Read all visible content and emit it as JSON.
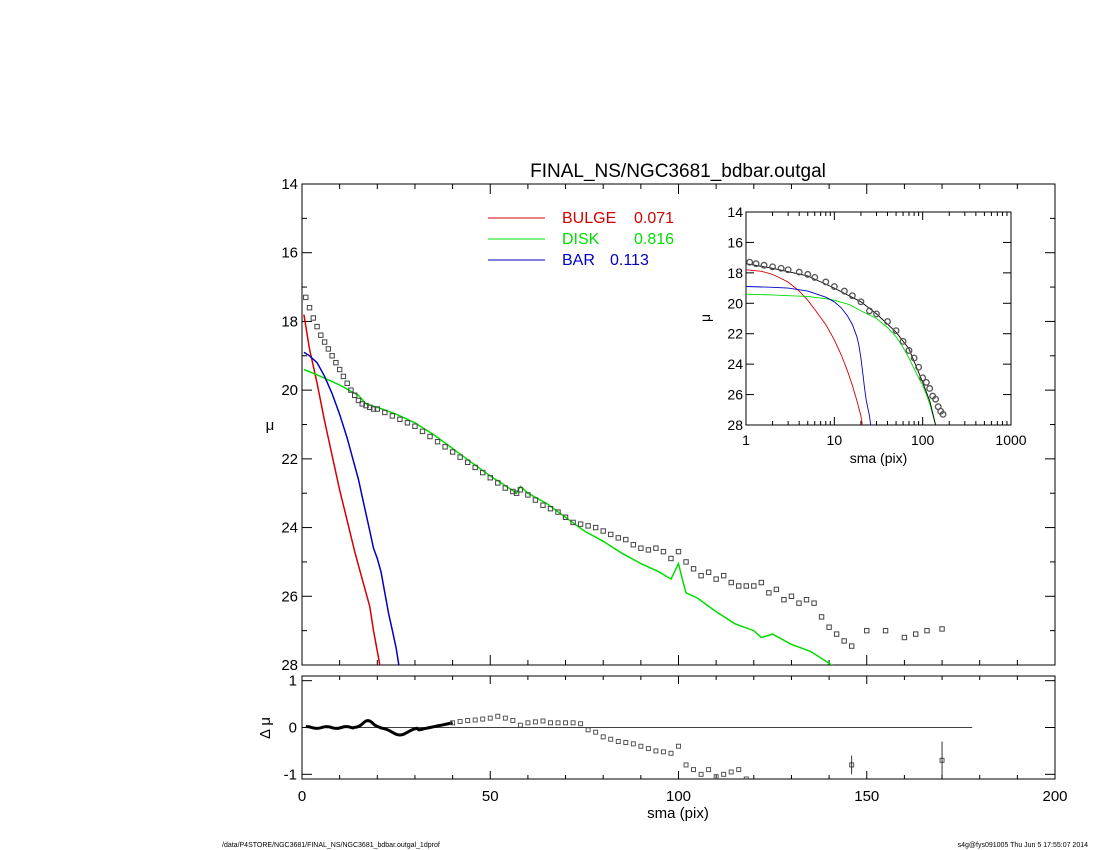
{
  "footer": {
    "left": "/data/P4STORE/NGC3681/FINAL_NS/NGC3681_bdbar.outgal_1dprof",
    "right": "s4g@fys091005  Thu Jun  5 17:55:07 2014"
  },
  "chart_data": [
    {
      "id": "main",
      "type": "line",
      "title": "FINAL_NS/NGC3681_bdbar.outgal",
      "xlabel": "",
      "ylabel": "μ",
      "xlim": [
        0,
        200
      ],
      "ylim": [
        28,
        14
      ],
      "xticks": [
        "0",
        "50",
        "100",
        "150",
        "200"
      ],
      "yticks": [
        "14",
        "16",
        "18",
        "20",
        "22",
        "24",
        "26",
        "28"
      ],
      "legend": {
        "position": "top-center",
        "entries": [
          {
            "name": "BULGE",
            "value": "0.071",
            "color": "#d40000"
          },
          {
            "name": "DISK",
            "value": "0.816",
            "color": "#00dd00"
          },
          {
            "name": "BAR",
            "value": "0.113",
            "color": "#0000c0"
          }
        ]
      },
      "data_points": {
        "marker": "square",
        "x": [
          1,
          2,
          3,
          4,
          5,
          6,
          7,
          8,
          9,
          10,
          11,
          12,
          13,
          14,
          15,
          16,
          17,
          18,
          19,
          20,
          22,
          24,
          26,
          28,
          30,
          32,
          34,
          36,
          38,
          40,
          42,
          44,
          46,
          48,
          50,
          52,
          54,
          56,
          57,
          58,
          60,
          62,
          64,
          66,
          68,
          70,
          72,
          74,
          76,
          78,
          80,
          82,
          84,
          86,
          88,
          90,
          92,
          94,
          96,
          98,
          100,
          102,
          104,
          106,
          108,
          110,
          112,
          114,
          116,
          118,
          120,
          122,
          124,
          126,
          128,
          130,
          132,
          134,
          136,
          138,
          140,
          142,
          144,
          146,
          150,
          155,
          160,
          163,
          166,
          170
        ],
        "y": [
          17.3,
          17.6,
          17.9,
          18.15,
          18.4,
          18.6,
          18.8,
          19.0,
          19.2,
          19.4,
          19.6,
          19.8,
          20.0,
          20.15,
          20.3,
          20.4,
          20.45,
          20.5,
          20.55,
          20.55,
          20.65,
          20.75,
          20.85,
          20.95,
          21.05,
          21.2,
          21.35,
          21.5,
          21.65,
          21.8,
          21.95,
          22.1,
          22.25,
          22.4,
          22.55,
          22.7,
          22.85,
          22.95,
          23.0,
          22.9,
          23.05,
          23.2,
          23.35,
          23.45,
          23.55,
          23.7,
          23.85,
          23.9,
          23.95,
          24.0,
          24.1,
          24.2,
          24.3,
          24.35,
          24.5,
          24.6,
          24.65,
          24.6,
          24.7,
          24.9,
          24.7,
          25.0,
          25.2,
          25.4,
          25.3,
          25.5,
          25.4,
          25.6,
          25.7,
          25.7,
          25.7,
          25.6,
          25.9,
          25.8,
          26.1,
          26.0,
          26.2,
          26.1,
          26.2,
          26.6,
          26.9,
          27.1,
          27.3,
          27.45,
          27.0,
          27.0,
          27.2,
          27.1,
          27.0,
          26.95
        ]
      },
      "series": [
        {
          "name": "BULGE",
          "color": "#d40000",
          "x": [
            0.5,
            2,
            4,
            6,
            8,
            10,
            12,
            14,
            16,
            18,
            19,
            20,
            21
          ],
          "y": [
            17.8,
            18.8,
            19.8,
            20.9,
            21.9,
            22.9,
            23.8,
            24.7,
            25.5,
            26.3,
            27.0,
            27.6,
            28.2
          ]
        },
        {
          "name": "DISK",
          "color": "#00dd00",
          "x": [
            0.5,
            5,
            10,
            15,
            17,
            20,
            25,
            30,
            35,
            40,
            45,
            50,
            55,
            57,
            58,
            60,
            65,
            70,
            75,
            80,
            85,
            90,
            95,
            98,
            100,
            101,
            102,
            105,
            110,
            115,
            120,
            122,
            125,
            130,
            135,
            140,
            143
          ],
          "y": [
            19.4,
            19.6,
            19.85,
            20.15,
            20.4,
            20.5,
            20.7,
            20.95,
            21.3,
            21.7,
            22.1,
            22.5,
            22.85,
            23.0,
            22.8,
            23.0,
            23.3,
            23.7,
            24.1,
            24.4,
            24.75,
            25.05,
            25.3,
            25.5,
            25.05,
            25.5,
            25.9,
            26.05,
            26.45,
            26.8,
            27.0,
            27.2,
            27.1,
            27.4,
            27.6,
            27.95,
            28.2
          ]
        },
        {
          "name": "BAR",
          "color": "#0000c0",
          "x": [
            0.5,
            2,
            4,
            6,
            8,
            10,
            12,
            14,
            15,
            16,
            17,
            18,
            19,
            20,
            21,
            22,
            23,
            24,
            25,
            26
          ],
          "y": [
            18.9,
            19.0,
            19.2,
            19.6,
            20.1,
            20.7,
            21.4,
            22.2,
            22.6,
            23.1,
            23.6,
            24.1,
            24.6,
            24.9,
            25.3,
            25.9,
            26.5,
            27.0,
            27.5,
            28.2
          ]
        }
      ]
    },
    {
      "id": "residual",
      "type": "scatter",
      "xlabel": "sma (pix)",
      "ylabel": "Δ μ",
      "xlim": [
        0,
        200
      ],
      "ylim": [
        -1.1,
        1.1
      ],
      "xticks": [
        "0",
        "50",
        "100",
        "150",
        "200"
      ],
      "yticks": [
        "1",
        "0",
        "-1"
      ],
      "zero_line_to": 178,
      "x": [
        40,
        42,
        44,
        46,
        48,
        50,
        52,
        54,
        56,
        58,
        60,
        62,
        64,
        66,
        68,
        70,
        72,
        74,
        76,
        78,
        80,
        82,
        84,
        86,
        88,
        90,
        92,
        94,
        96,
        98,
        100,
        102,
        104,
        106,
        108,
        110,
        112,
        114,
        116,
        118,
        146,
        170
      ],
      "y": [
        0.1,
        0.13,
        0.15,
        0.16,
        0.18,
        0.2,
        0.24,
        0.2,
        0.15,
        0.05,
        0.1,
        0.12,
        0.14,
        0.1,
        0.1,
        0.1,
        0.1,
        0.08,
        -0.05,
        -0.1,
        -0.2,
        -0.25,
        -0.3,
        -0.32,
        -0.35,
        -0.4,
        -0.45,
        -0.5,
        -0.52,
        -0.55,
        -0.4,
        -0.8,
        -0.9,
        -1.0,
        -0.9,
        -1.05,
        -1.0,
        -0.95,
        -0.9,
        -1.1,
        -0.8,
        -0.7
      ],
      "errors": {
        "x": [
          146,
          170
        ],
        "low": [
          -1.0,
          -1.1
        ],
        "high": [
          -0.6,
          -0.3
        ]
      }
    },
    {
      "id": "inset",
      "type": "line",
      "xlabel": "sma (pix)",
      "ylabel": "μ",
      "xscale": "log",
      "xlim": [
        1,
        1000
      ],
      "ylim": [
        28,
        14
      ],
      "xticks": [
        "1",
        "10",
        "100",
        "1000"
      ],
      "yticks": [
        "14",
        "16",
        "18",
        "20",
        "22",
        "24",
        "26",
        "28"
      ],
      "data_points": {
        "x": [
          1.1,
          1.3,
          1.6,
          2,
          2.5,
          3,
          4,
          5,
          6,
          8,
          10,
          13,
          16,
          20,
          25,
          30,
          40,
          50,
          60,
          70,
          80,
          90,
          100,
          110,
          120,
          130,
          140,
          150,
          160,
          170
        ],
        "y": [
          17.3,
          17.4,
          17.5,
          17.6,
          17.7,
          17.8,
          17.95,
          18.1,
          18.3,
          18.6,
          18.9,
          19.2,
          19.5,
          19.9,
          20.5,
          20.7,
          21.2,
          21.8,
          22.5,
          23.1,
          23.6,
          24.2,
          24.9,
          25.2,
          25.6,
          26.1,
          26.3,
          26.8,
          27.1,
          27.3
        ]
      },
      "series": [
        {
          "name": "BULGE",
          "color": "#d40000",
          "x": [
            1,
            1.5,
            2,
            3,
            4,
            5,
            6,
            8,
            10,
            12,
            14,
            16,
            18,
            20,
            21
          ],
          "y": [
            17.8,
            17.9,
            18.1,
            18.6,
            19.2,
            19.8,
            20.4,
            21.4,
            22.4,
            23.4,
            24.4,
            25.4,
            26.4,
            27.4,
            28.2
          ]
        },
        {
          "name": "DISK",
          "color": "#00dd00",
          "x": [
            1,
            2,
            3,
            5,
            8,
            10,
            15,
            20,
            30,
            40,
            50,
            60,
            70,
            80,
            90,
            100,
            110,
            120,
            130,
            140
          ],
          "y": [
            19.4,
            19.45,
            19.5,
            19.55,
            19.7,
            19.8,
            20.1,
            20.5,
            21.0,
            21.6,
            22.2,
            22.9,
            23.6,
            24.3,
            24.9,
            25.4,
            26.0,
            26.6,
            27.3,
            28.0
          ]
        },
        {
          "name": "BAR",
          "color": "#0000c0",
          "x": [
            1,
            2,
            3,
            5,
            8,
            10,
            12,
            14,
            16,
            18,
            19,
            20,
            21,
            22,
            23,
            24,
            25,
            26
          ],
          "y": [
            18.9,
            18.95,
            19.0,
            19.2,
            19.6,
            19.9,
            20.3,
            20.8,
            21.4,
            22.2,
            22.8,
            23.6,
            24.6,
            25.6,
            26.4,
            26.9,
            27.4,
            28.2
          ]
        },
        {
          "name": "",
          "color": "#000000",
          "x": [
            1,
            2,
            5,
            10,
            20,
            30,
            50,
            70,
            100,
            120,
            140
          ],
          "y": [
            17.4,
            17.7,
            18.2,
            19.0,
            19.9,
            20.7,
            21.9,
            23.0,
            25.2,
            26.4,
            28.0
          ]
        }
      ]
    }
  ]
}
